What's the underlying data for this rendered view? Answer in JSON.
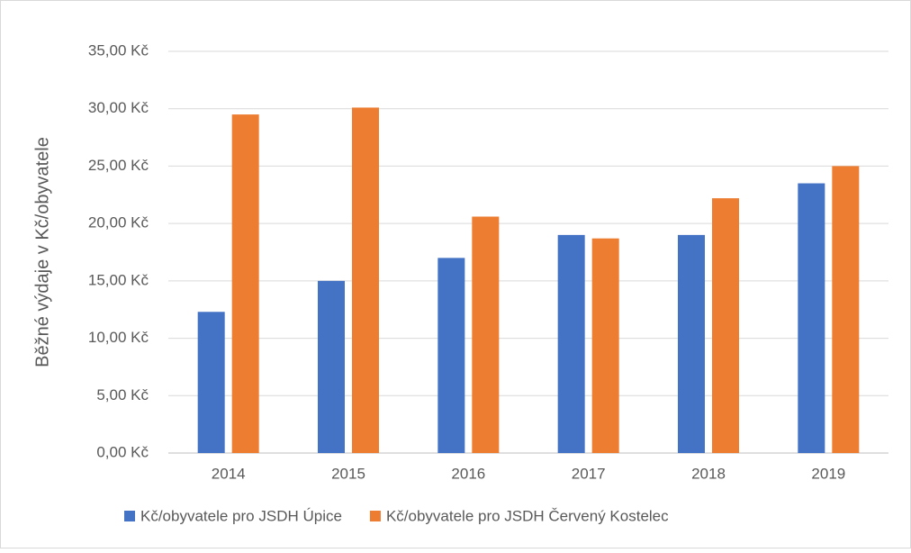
{
  "chart_data": {
    "type": "bar",
    "y_axis_label": "Běžné výdaje v Kč/obyvatele",
    "categories": [
      "2014",
      "2015",
      "2016",
      "2017",
      "2018",
      "2019"
    ],
    "series": [
      {
        "name": "Kč/obyvatele pro JSDH Úpice",
        "color": "#4472c4",
        "values": [
          12.3,
          15.0,
          17.0,
          19.0,
          19.0,
          23.5
        ]
      },
      {
        "name": "Kč/obyvatele pro JSDH Červený Kostelec",
        "color": "#ed7d31",
        "values": [
          29.5,
          30.1,
          20.6,
          18.7,
          22.2,
          25.0
        ]
      }
    ],
    "ylim": [
      0,
      35
    ],
    "yticks": [
      {
        "value": 0,
        "label": "0,00 Kč"
      },
      {
        "value": 5,
        "label": "5,00 Kč"
      },
      {
        "value": 10,
        "label": "10,00 Kč"
      },
      {
        "value": 15,
        "label": "15,00 Kč"
      },
      {
        "value": 20,
        "label": "20,00 Kč"
      },
      {
        "value": 25,
        "label": "25,00 Kč"
      },
      {
        "value": 30,
        "label": "30,00 Kč"
      },
      {
        "value": 35,
        "label": "35,00 Kč"
      }
    ],
    "grid": true,
    "legend": "bottom"
  }
}
